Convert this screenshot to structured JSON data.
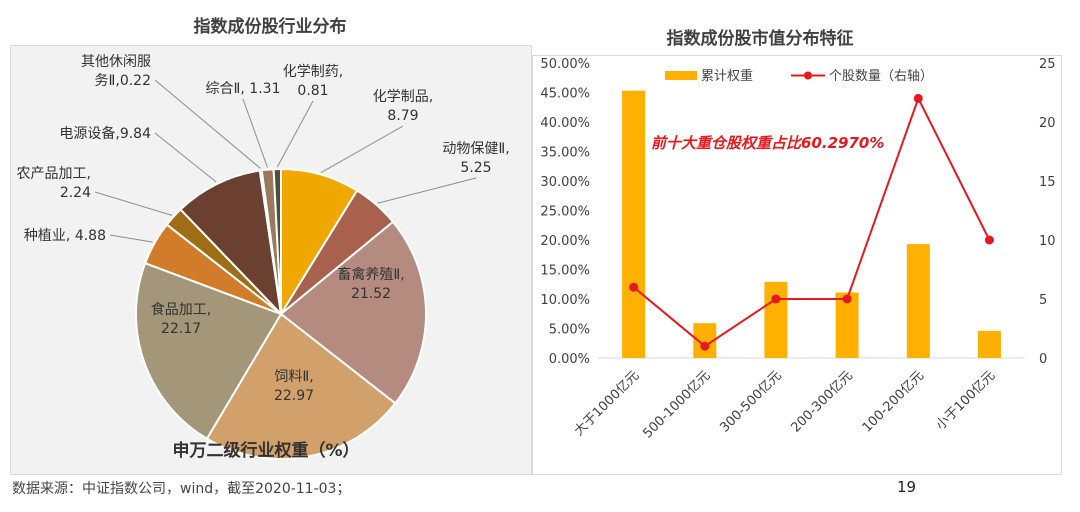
{
  "left_chart": {
    "title": "指数成份股行业分布",
    "subtitle": "申万二级行业权重（%）"
  },
  "right_chart": {
    "title": "指数成份股市值分布特征",
    "annotation": "前十大重仓股权重占比60.2970%"
  },
  "source_note": "数据来源：中证指数公司，wind，截至2020-11-03；",
  "page_number": "19",
  "chart_data": [
    {
      "type": "pie",
      "title": "指数成份股行业分布",
      "subtitle": "申万二级行业权重（%）",
      "slices": [
        {
          "name": "化学制品",
          "label_lines": [
            "化学制品,",
            "8.79"
          ],
          "value": 8.79,
          "color": "#f0a800"
        },
        {
          "name": "动物保健Ⅱ",
          "label_lines": [
            "动物保健Ⅱ,",
            "5.25"
          ],
          "value": 5.25,
          "color": "#a8614c"
        },
        {
          "name": "畜禽养殖Ⅱ",
          "label_lines": [
            "畜禽养殖Ⅱ,",
            "21.52"
          ],
          "value": 21.52,
          "color": "#b48b7e"
        },
        {
          "name": "饲料Ⅱ",
          "label_lines": [
            "饲料Ⅱ,",
            "22.97"
          ],
          "value": 22.97,
          "color": "#d2a06a"
        },
        {
          "name": "食品加工",
          "label_lines": [
            "食品加工,",
            "22.17"
          ],
          "value": 22.17,
          "color": "#a39679"
        },
        {
          "name": "种植业",
          "label_lines": [
            "种植业, 4.88"
          ],
          "value": 4.88,
          "color": "#d07c2a"
        },
        {
          "name": "农产品加工",
          "label_lines": [
            "农产品加工,",
            "2.24"
          ],
          "value": 2.24,
          "color": "#9e6d16"
        },
        {
          "name": "电源设备",
          "label_lines": [
            "电源设备,9.84"
          ],
          "value": 9.84,
          "color": "#6b4030"
        },
        {
          "name": "其他休闲服务Ⅱ",
          "label_lines": [
            "其他休闲服",
            "务Ⅱ,0.22"
          ],
          "value": 0.22,
          "color": "#3a2a20"
        },
        {
          "name": "综合Ⅱ",
          "label_lines": [
            "综合Ⅱ, 1.31"
          ],
          "value": 1.31,
          "color": "#9a7a5a"
        },
        {
          "name": "化学制药",
          "label_lines": [
            "化学制药,",
            "0.81"
          ],
          "value": 0.81,
          "color": "#554a3e"
        }
      ]
    },
    {
      "type": "bar",
      "title": "指数成份股市值分布特征",
      "categories": [
        "大于1000亿元",
        "500-1000亿元",
        "300-500亿元",
        "200-300亿元",
        "100-200亿元",
        "小于100亿元"
      ],
      "series": [
        {
          "name": "累计权重",
          "type": "bar",
          "axis": "left",
          "color": "#ffb000",
          "values": [
            45.3,
            5.9,
            12.9,
            11.1,
            19.3,
            4.6
          ]
        },
        {
          "name": "个股数量（右轴）",
          "type": "line",
          "axis": "right",
          "color": "#e8191e",
          "values": [
            6,
            1,
            5,
            5,
            22,
            10
          ]
        }
      ],
      "left_axis": {
        "min": 0,
        "max": 50,
        "step": 5,
        "tick_labels": [
          "0.00%",
          "5.00%",
          "10.00%",
          "15.00%",
          "20.00%",
          "25.00%",
          "30.00%",
          "35.00%",
          "40.00%",
          "45.00%",
          "50.00%"
        ]
      },
      "right_axis": {
        "min": 0,
        "max": 25,
        "step": 5,
        "tick_labels": [
          "0",
          "5",
          "10",
          "15",
          "20",
          "25"
        ]
      },
      "legend": "top-center",
      "annotation": "前十大重仓股权重占比60.2970%"
    }
  ]
}
